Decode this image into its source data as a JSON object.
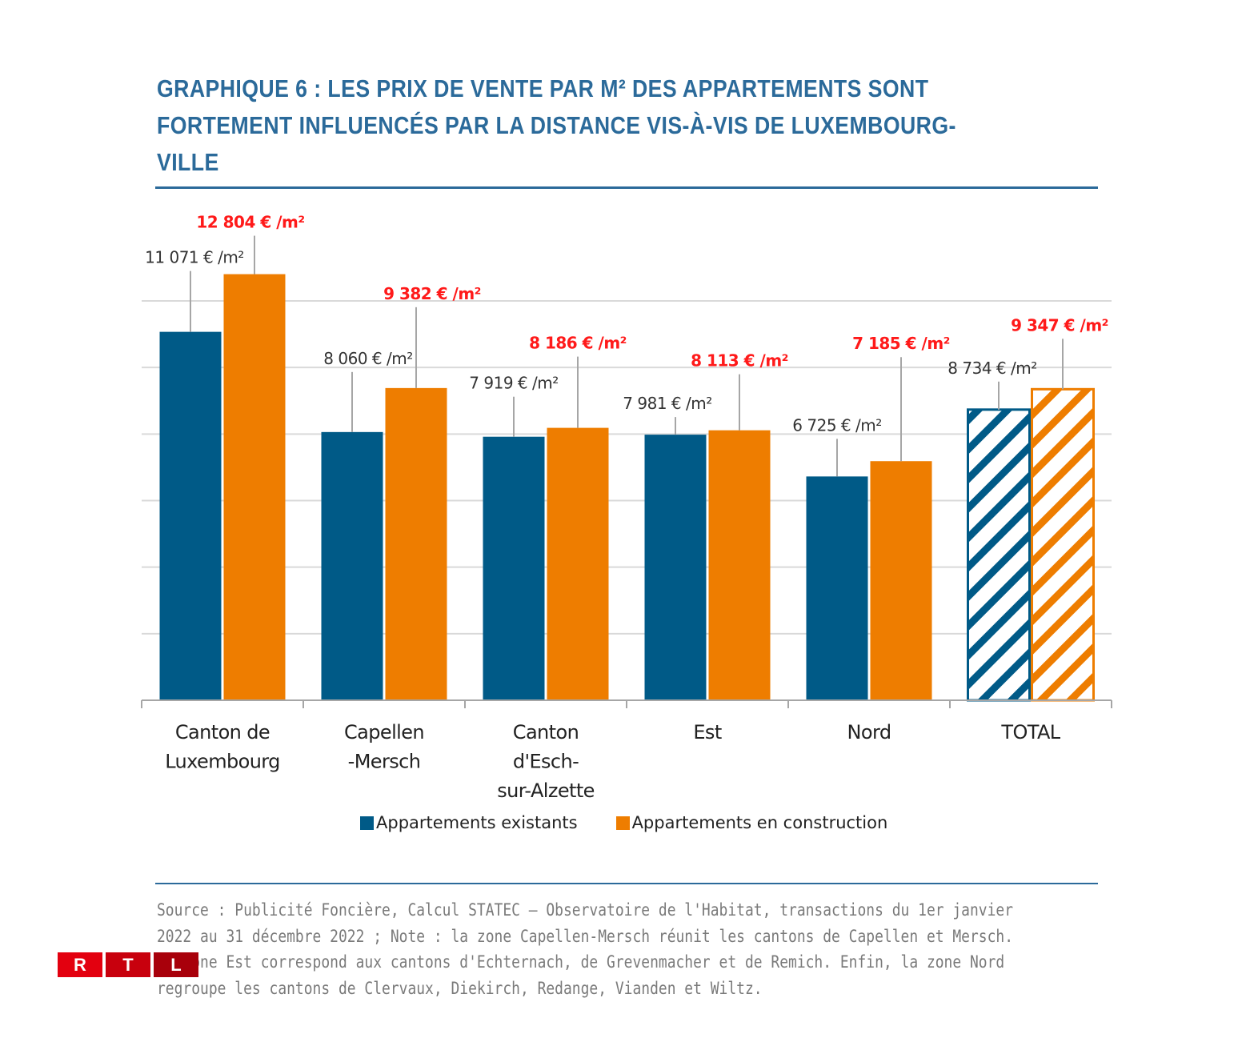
{
  "header": {
    "title": "GRAPHIQUE 6 : LES PRIX DE VENTE PAR M² DES APPARTEMENTS SONT\nFORTEMENT INFLUENCÉS PAR LA DISTANCE VIS-À-VIS DE LUXEMBOURG-\nVILLE"
  },
  "colors": {
    "existing": "#005a87",
    "construction": "#ee7d00",
    "label_existing": "#333333",
    "label_construction": "#ff1a1a",
    "title": "#2b6a9a"
  },
  "chart_data": {
    "type": "bar",
    "title": "GRAPHIQUE 6 : LES PRIX DE VENTE PAR M² DES APPARTEMENTS SONT FORTEMENT INFLUENCÉS PAR LA DISTANCE VIS-À-VIS DE LUXEMBOURG-VILLE",
    "xlabel": "",
    "ylabel": "",
    "ylim": [
      0,
      12000
    ],
    "ytick_step": 2000,
    "yticks_labeled": false,
    "grid": true,
    "legend_position": "bottom-center",
    "categories": [
      "Canton de\nLuxembourg",
      "Capellen\n-Mersch",
      "Canton\nd'Esch-\nsur-Alzette",
      "Est",
      "Nord",
      "TOTAL"
    ],
    "hatched_categories": [
      "TOTAL"
    ],
    "series": [
      {
        "name": "Appartements existants",
        "values": [
          11071,
          8060,
          7919,
          7981,
          6725,
          8734
        ],
        "labels": [
          "11 071 € /m²",
          "8 060 € /m²",
          "7 919 € /m²",
          "7 981 € /m²",
          "6 725 € /m²",
          "8 734 € /m²"
        ]
      },
      {
        "name": "Appartements en construction",
        "values": [
          12804,
          9382,
          8186,
          8113,
          7185,
          9347
        ],
        "labels": [
          "12 804 € /m²",
          "9 382 € /m²",
          "8 186 € /m²",
          "8 113 € /m²",
          "7 185 € /m²",
          "9 347 € /m²"
        ]
      }
    ]
  },
  "legend": {
    "items": [
      {
        "label": "Appartements existants"
      },
      {
        "label": "Appartements en construction"
      }
    ]
  },
  "footer": {
    "source": "Source : Publicité Foncière, Calcul STATEC – Observatoire de l'Habitat, transactions du 1er janvier 2022 au 31 décembre 2022 ; Note : la zone Capellen-Mersch réunit les cantons de Capellen et Mersch. La zone Est correspond aux cantons d'Echternach, de Grevenmacher et de Remich. Enfin, la zone Nord regroupe les cantons de Clervaux, Diekirch, Redange, Vianden et Wiltz."
  },
  "logo": {
    "letters": [
      "R",
      "T",
      "L"
    ],
    "colors": [
      "#e3000f",
      "#c8000d",
      "#a8000b"
    ]
  }
}
